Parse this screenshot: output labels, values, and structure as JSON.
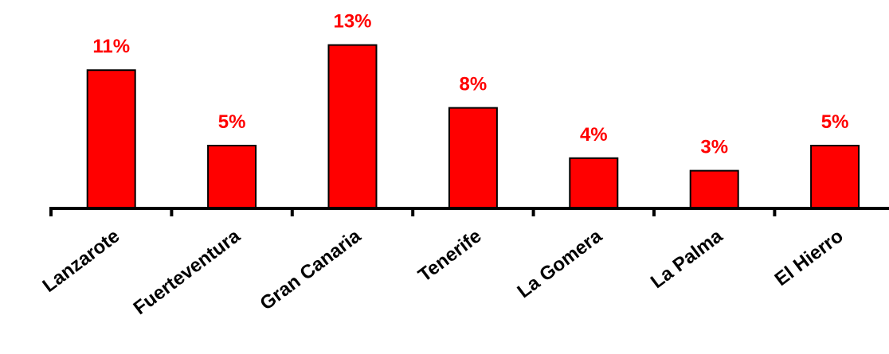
{
  "chart_data": {
    "type": "bar",
    "title": "",
    "xlabel": "",
    "ylabel": "",
    "categories": [
      "Lanzarote",
      "Fuerteventura",
      "Gran Canaria",
      "Tenerife",
      "La Gomera",
      "La Palma",
      "El Hierro"
    ],
    "values": [
      11,
      5,
      13,
      8,
      4,
      3,
      5
    ],
    "data_labels": [
      "11%",
      "5%",
      "13%",
      "8%",
      "4%",
      "3%",
      "5%"
    ],
    "ylim": [
      0,
      14
    ],
    "grid": false,
    "legend": "none",
    "colors": {
      "bar_fill": "#ff0000",
      "bar_stroke": "#000000",
      "data_label": "#ff0000",
      "axis": "#000000"
    }
  }
}
